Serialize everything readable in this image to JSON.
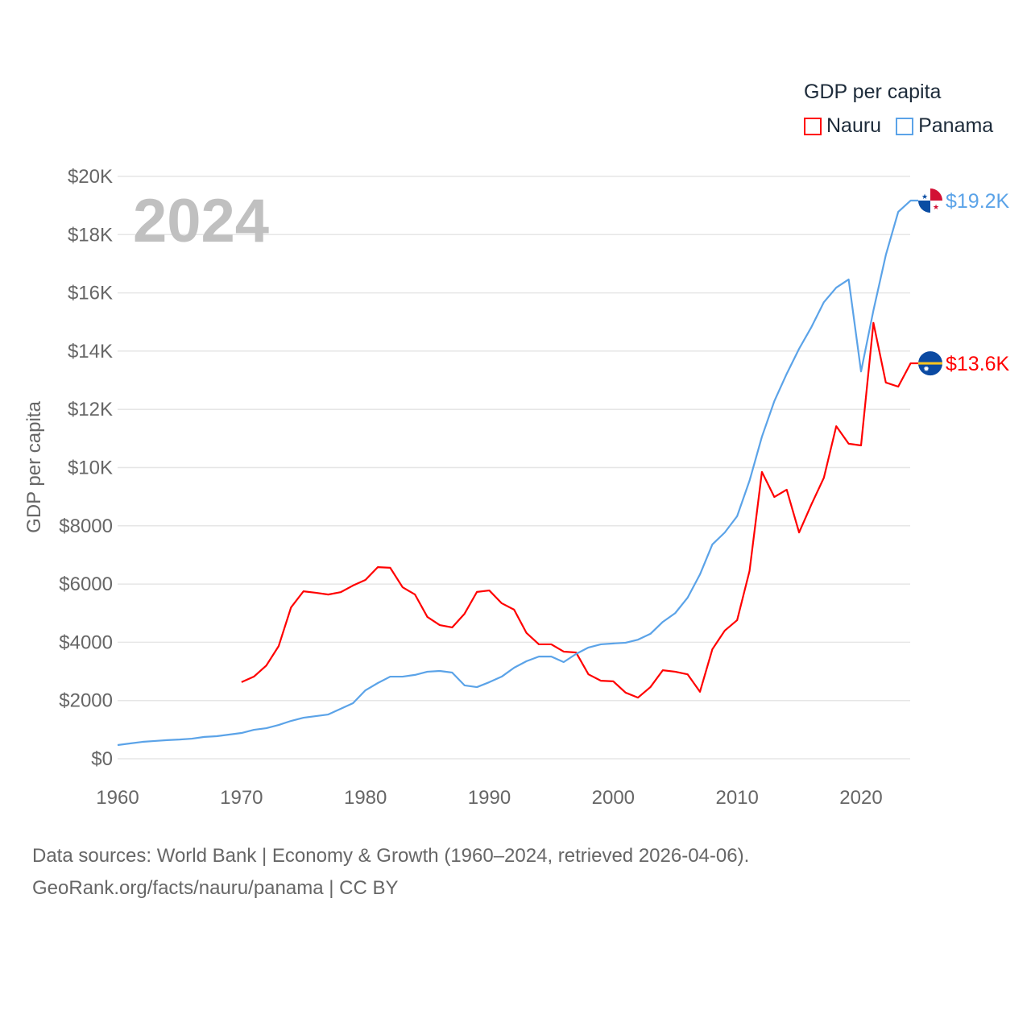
{
  "chart_data": {
    "type": "line",
    "title": "GDP per capita",
    "watermark_year": "2024",
    "ylabel": "GDP per capita",
    "xlabel": "",
    "xlim": [
      1960,
      2024
    ],
    "ylim": [
      0,
      20000
    ],
    "grid": true,
    "legend_placement": "top-right",
    "x_ticks": [
      "1960",
      "1970",
      "1980",
      "1990",
      "2000",
      "2010",
      "2020"
    ],
    "x_tick_values": [
      1960,
      1970,
      1980,
      1990,
      2000,
      2010,
      2020
    ],
    "y_ticks": [
      "$0",
      "$2000",
      "$4000",
      "$6000",
      "$8000",
      "$10K",
      "$12K",
      "$14K",
      "$16K",
      "$18K",
      "$20K"
    ],
    "y_tick_values": [
      0,
      2000,
      4000,
      6000,
      8000,
      10000,
      12000,
      14000,
      16000,
      18000,
      20000
    ],
    "series": [
      {
        "name": "Nauru",
        "color": "#ff0000",
        "end_label": "$13.6K",
        "flag": "nauru-flag",
        "start_year": 1970,
        "values": [
          2630,
          2820,
          3200,
          3870,
          5200,
          5750,
          5700,
          5640,
          5720,
          5950,
          6140,
          6580,
          6560,
          5890,
          5640,
          4870,
          4590,
          4510,
          4980,
          5730,
          5780,
          5340,
          5120,
          4320,
          3930,
          3930,
          3680,
          3650,
          2900,
          2680,
          2660,
          2270,
          2100,
          2460,
          3040,
          2990,
          2900,
          2300,
          3760,
          4400,
          4760,
          6450,
          9850,
          8990,
          9240,
          7770,
          8740,
          9650,
          11420,
          10820,
          10760,
          14970,
          12920,
          12780,
          13580
        ]
      },
      {
        "name": "Panama",
        "color": "#5ba3e8",
        "end_label": "$19.2K",
        "flag": "panama-flag",
        "start_year": 1960,
        "values": [
          470,
          525,
          580,
          610,
          640,
          660,
          690,
          750,
          775,
          830,
          885,
          995,
          1050,
          1160,
          1300,
          1410,
          1465,
          1520,
          1715,
          1910,
          2350,
          2600,
          2820,
          2820,
          2880,
          2990,
          3015,
          2960,
          2520,
          2460,
          2630,
          2820,
          3125,
          3350,
          3510,
          3510,
          3320,
          3600,
          3820,
          3930,
          3960,
          3985,
          4090,
          4290,
          4700,
          5000,
          5530,
          6330,
          7360,
          7770,
          8330,
          9550,
          11060,
          12280,
          13220,
          14080,
          14830,
          15680,
          16180,
          16460,
          13300,
          15400,
          17300,
          18780,
          19170
        ]
      }
    ]
  },
  "footer": {
    "line1": "Data sources: World Bank | Economy & Growth (1960–2024, retrieved 2026-04-06).",
    "line2": "GeoRank.org/facts/nauru/panama | CC BY"
  }
}
